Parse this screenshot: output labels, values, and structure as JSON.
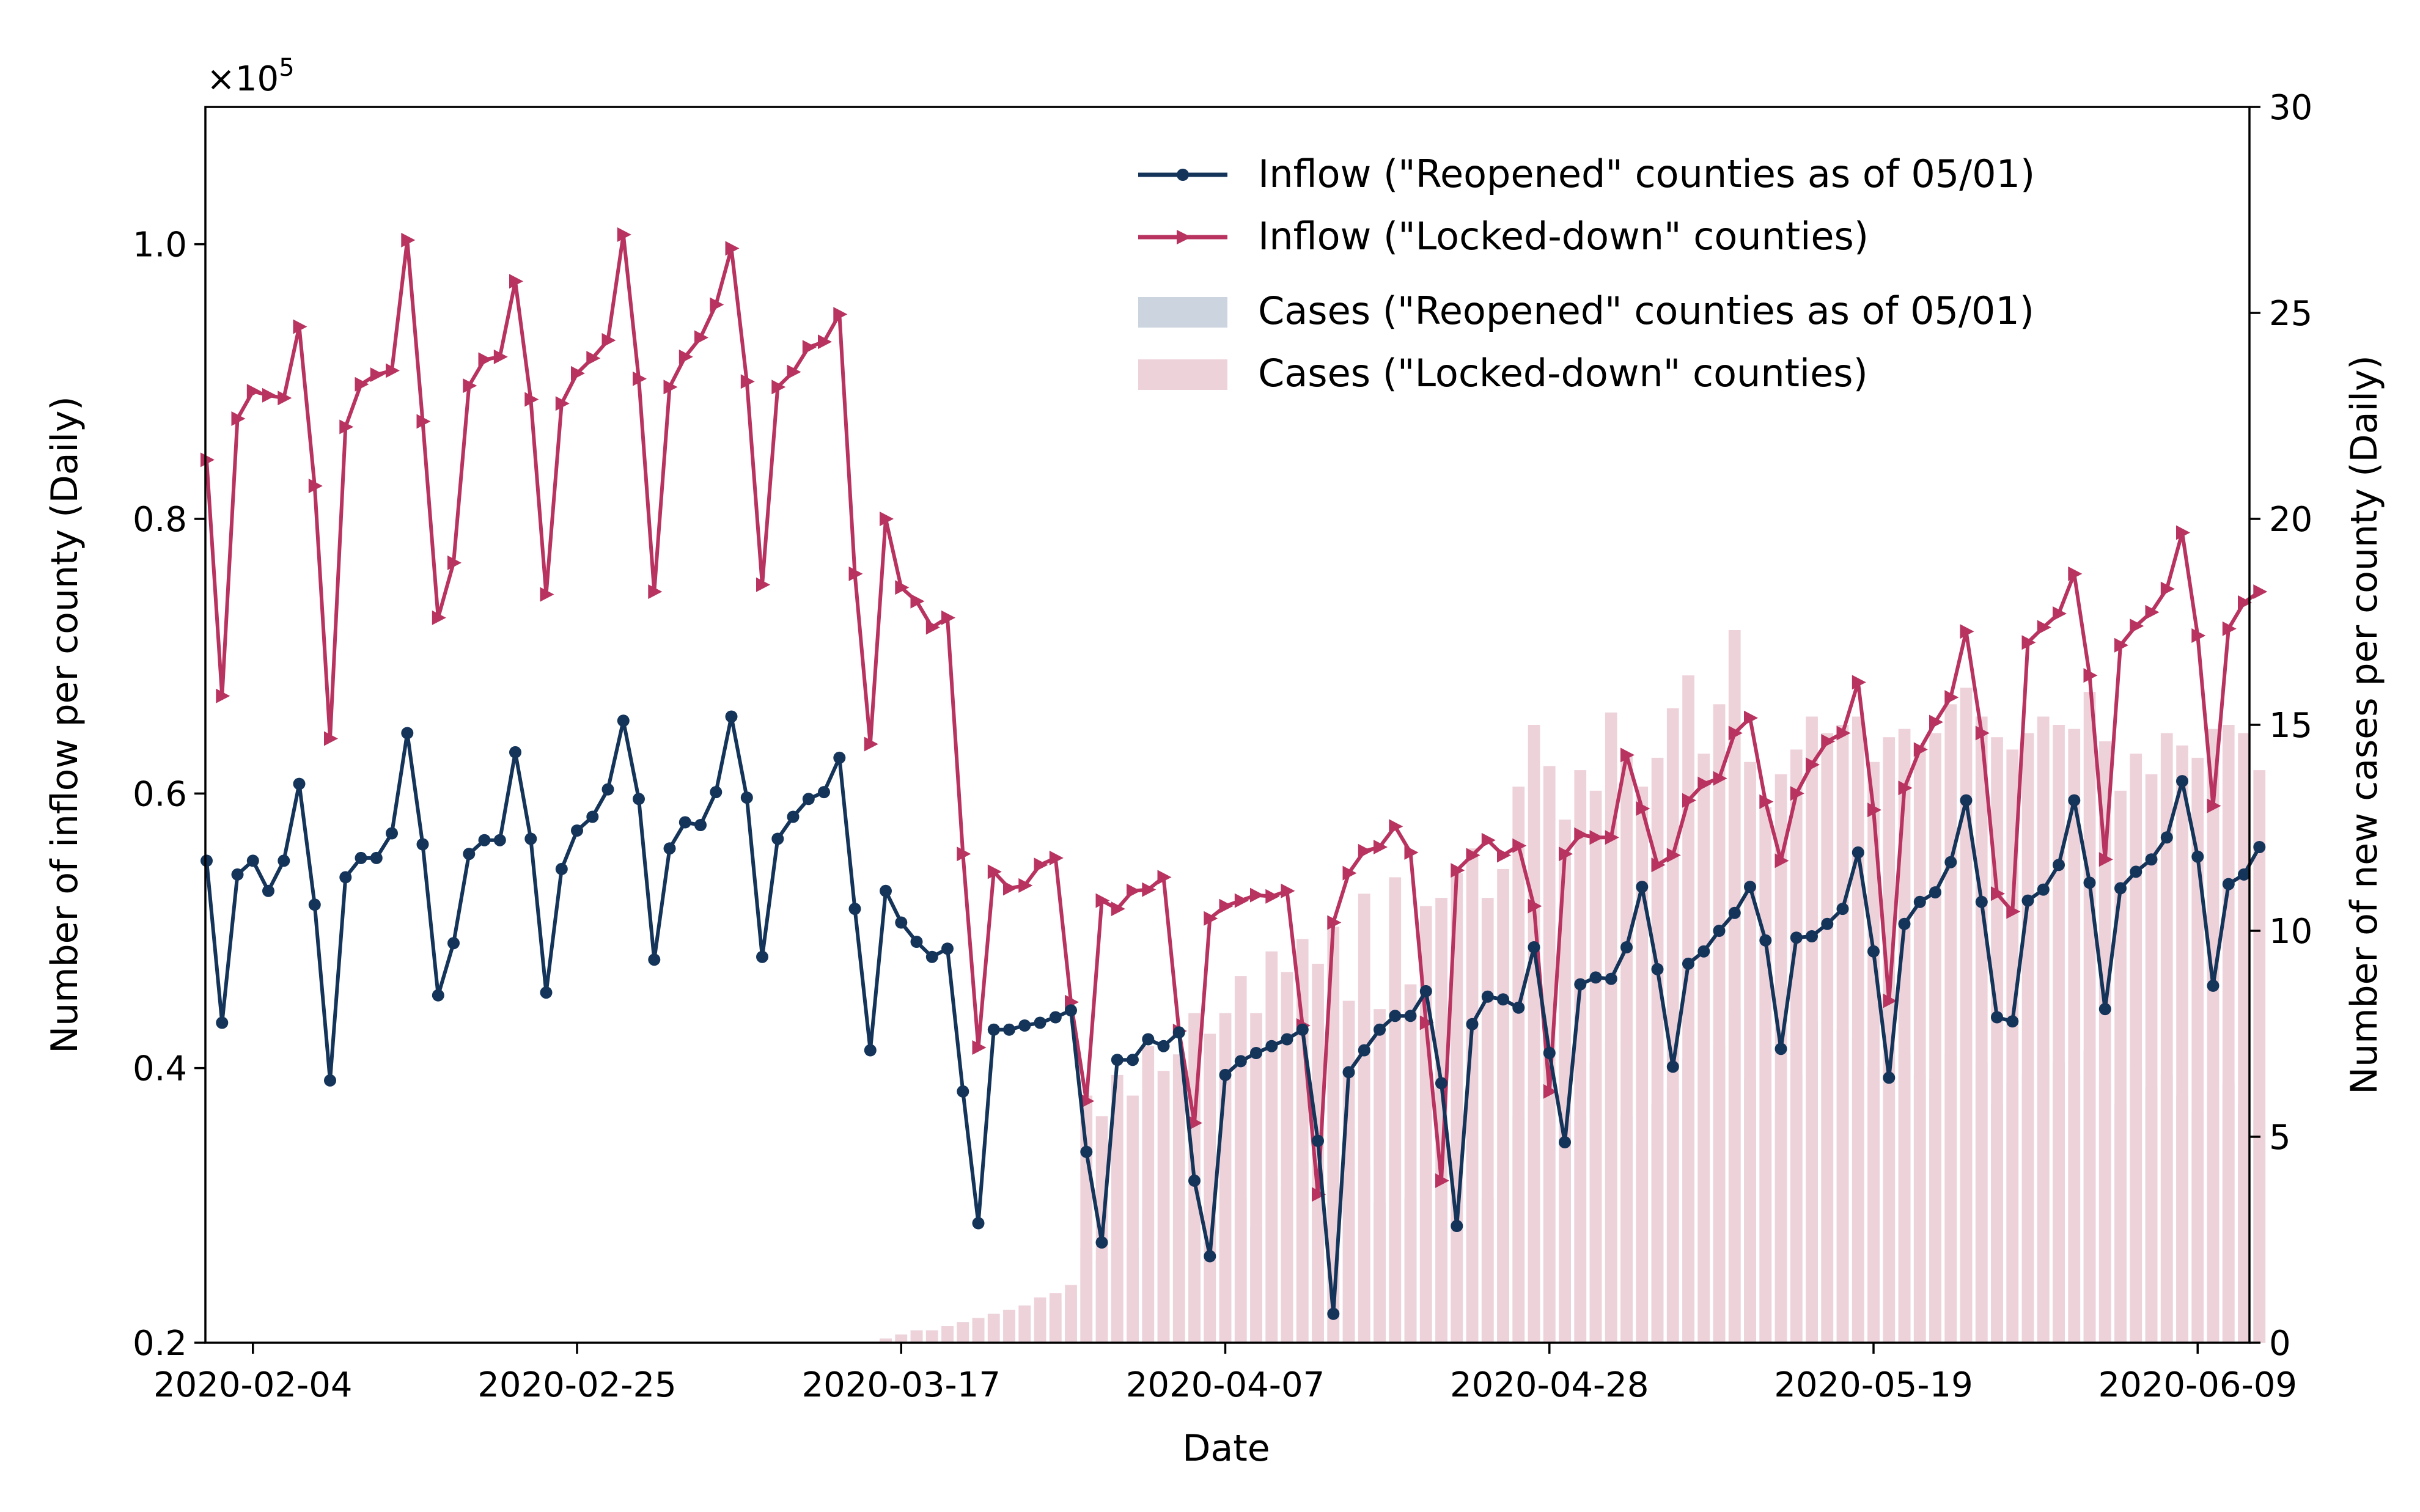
{
  "chart_data": {
    "type": "bar",
    "start_date": "2020-02-01",
    "xlabel": "Date",
    "ylabel_left": "Number of inflow per county (Daily)",
    "ylabel_right": "Number of new cases per county (Daily)",
    "left_axis_multiplier": "×10",
    "left_axis_exponent": "5",
    "ylim_left": [
      0.2,
      1.1
    ],
    "ylim_right": [
      0,
      30
    ],
    "left_ticks": [
      "0.2",
      "0.4",
      "0.6",
      "0.8",
      "1.0"
    ],
    "right_ticks": [
      "0",
      "5",
      "10",
      "15",
      "20",
      "25",
      "30"
    ],
    "x_ticks": [
      "2020-02-04",
      "2020-02-25",
      "2020-03-17",
      "2020-04-07",
      "2020-04-28",
      "2020-05-19",
      "2020-06-09"
    ],
    "legend_position": "upper-right",
    "series": [
      {
        "name": "Inflow (\"Reopened\" counties as of 05/01)",
        "kind": "line",
        "marker": "circle",
        "color": "#14345a",
        "values": [
          0.551,
          0.433,
          0.541,
          0.551,
          0.529,
          0.551,
          0.607,
          0.519,
          0.391,
          0.539,
          0.553,
          0.553,
          0.571,
          0.644,
          0.563,
          0.453,
          0.491,
          0.556,
          0.566,
          0.566,
          0.63,
          0.567,
          0.455,
          0.545,
          0.573,
          0.583,
          0.603,
          0.653,
          0.596,
          0.479,
          0.56,
          0.579,
          0.577,
          0.601,
          0.656,
          0.597,
          0.481,
          0.567,
          0.583,
          0.596,
          0.601,
          0.626,
          0.516,
          0.413,
          0.529,
          0.506,
          0.492,
          0.481,
          0.487,
          0.383,
          0.287,
          0.428,
          0.428,
          0.431,
          0.433,
          0.437,
          0.442,
          0.339,
          0.273,
          0.406,
          0.406,
          0.421,
          0.416,
          0.426,
          0.318,
          0.263,
          0.395,
          0.405,
          0.411,
          0.416,
          0.421,
          0.428,
          0.347,
          0.221,
          0.397,
          0.413,
          0.428,
          0.438,
          0.438,
          0.456,
          0.389,
          0.285,
          0.432,
          0.452,
          0.45,
          0.444,
          0.488,
          0.411,
          0.346,
          0.461,
          0.466,
          0.465,
          0.488,
          0.532,
          0.472,
          0.401,
          0.476,
          0.485,
          0.5,
          0.513,
          0.532,
          0.493,
          0.414,
          0.495,
          0.496,
          0.505,
          0.516,
          0.557,
          0.485,
          0.393,
          0.505,
          0.521,
          0.528,
          0.55,
          0.595,
          0.521,
          0.437,
          0.434,
          0.522,
          0.53,
          0.548,
          0.595,
          0.535,
          0.443,
          0.531,
          0.543,
          0.552,
          0.568,
          0.609,
          0.554,
          0.46,
          0.534,
          0.541,
          0.561
        ]
      },
      {
        "name": "Inflow (\"Locked-down\" counties)",
        "kind": "line",
        "marker": "triangle-right",
        "color": "#b83360",
        "values": [
          0.843,
          0.671,
          0.873,
          0.893,
          0.89,
          0.888,
          0.94,
          0.824,
          0.64,
          0.867,
          0.898,
          0.905,
          0.908,
          1.003,
          0.871,
          0.728,
          0.768,
          0.897,
          0.916,
          0.918,
          0.973,
          0.887,
          0.745,
          0.884,
          0.906,
          0.917,
          0.93,
          1.007,
          0.902,
          0.747,
          0.896,
          0.918,
          0.932,
          0.956,
          0.997,
          0.9,
          0.752,
          0.896,
          0.907,
          0.925,
          0.929,
          0.949,
          0.76,
          0.636,
          0.8,
          0.75,
          0.74,
          0.721,
          0.728,
          0.556,
          0.415,
          0.543,
          0.531,
          0.533,
          0.548,
          0.553,
          0.448,
          0.376,
          0.522,
          0.516,
          0.529,
          0.53,
          0.539,
          0.427,
          0.36,
          0.509,
          0.518,
          0.522,
          0.526,
          0.525,
          0.529,
          0.431,
          0.308,
          0.506,
          0.542,
          0.558,
          0.561,
          0.576,
          0.557,
          0.433,
          0.318,
          0.544,
          0.555,
          0.566,
          0.555,
          0.562,
          0.518,
          0.383,
          0.556,
          0.57,
          0.568,
          0.568,
          0.628,
          0.589,
          0.548,
          0.555,
          0.595,
          0.607,
          0.611,
          0.644,
          0.655,
          0.594,
          0.551,
          0.6,
          0.621,
          0.638,
          0.644,
          0.681,
          0.588,
          0.449,
          0.604,
          0.632,
          0.652,
          0.67,
          0.718,
          0.644,
          0.527,
          0.514,
          0.71,
          0.721,
          0.731,
          0.76,
          0.686,
          0.552,
          0.708,
          0.722,
          0.732,
          0.749,
          0.79,
          0.715,
          0.591,
          0.72,
          0.739,
          0.747
        ]
      },
      {
        "name": "Cases (\"Reopened\" counties as of 05/01)",
        "kind": "bar",
        "color": "#ccd5df",
        "values": [
          0,
          0,
          0,
          0,
          0,
          0,
          0,
          0,
          0,
          0,
          0,
          0,
          0,
          0,
          0,
          0,
          0,
          0,
          0,
          0,
          0,
          0,
          0,
          0,
          0,
          0,
          0,
          0,
          0,
          0,
          0,
          0,
          0,
          0,
          0,
          0,
          0,
          0,
          0,
          0,
          0,
          0,
          0,
          0,
          0.1,
          0.2,
          0.3,
          0.3,
          0.4,
          0.5,
          0.6,
          0.7,
          0.8,
          0.9,
          0.9,
          1.0,
          1.2,
          2.3,
          2.0,
          2.5,
          2.3,
          3.2,
          2.5,
          2.8,
          3.2,
          2.9,
          2.5,
          3.5,
          2.8,
          4.0,
          3.8,
          4.4,
          4.0,
          3.9,
          3.5,
          4.3,
          3.4,
          4.7,
          3.5,
          4.5,
          4.2,
          3.8,
          4.9,
          3.5,
          4.0,
          5.5,
          6.0,
          5.8,
          5.0,
          5.5,
          6.8,
          7.3,
          5.5,
          4.8,
          5.8,
          6.2,
          6.9,
          6.8,
          7.2,
          8.1,
          6.4,
          5.4,
          5.6,
          6.5,
          7.8,
          7.1,
          7.6,
          7.4,
          6.7,
          6.8,
          7.0,
          6.5,
          6.4,
          7.0,
          7.5,
          6.8,
          5.8,
          6.3,
          6.5,
          7.0,
          6.8,
          6.5,
          7.1,
          6.3,
          5.8,
          6.7,
          6.2,
          6.5,
          6.0,
          5.6,
          6.1,
          6.3,
          5.8,
          5.4
        ]
      },
      {
        "name": "Cases (\"Locked-down\" counties)",
        "kind": "bar",
        "color": "#eed2da",
        "values": [
          0,
          0,
          0,
          0,
          0,
          0,
          0,
          0,
          0,
          0,
          0,
          0,
          0,
          0,
          0,
          0,
          0,
          0,
          0,
          0,
          0,
          0,
          0,
          0,
          0,
          0,
          0,
          0,
          0,
          0,
          0,
          0,
          0,
          0,
          0,
          0,
          0,
          0,
          0,
          0,
          0,
          0,
          0,
          0,
          0.1,
          0.2,
          0.3,
          0.3,
          0.4,
          0.5,
          0.6,
          0.7,
          0.8,
          0.9,
          1.1,
          1.2,
          1.4,
          6.0,
          5.5,
          6.5,
          6.0,
          7.2,
          6.6,
          7.0,
          8.0,
          7.5,
          8.0,
          8.9,
          8.0,
          9.5,
          9.0,
          9.8,
          9.2,
          10.1,
          8.3,
          10.9,
          8.1,
          11.3,
          8.7,
          10.6,
          10.8,
          11.4,
          12.0,
          10.8,
          11.5,
          13.5,
          15.0,
          14.0,
          12.7,
          13.9,
          13.4,
          15.3,
          14.3,
          13.5,
          14.2,
          15.4,
          16.2,
          14.3,
          15.5,
          17.3,
          14.1,
          13.0,
          13.8,
          14.4,
          15.2,
          14.8,
          15.0,
          15.2,
          14.1,
          14.7,
          14.9,
          14.5,
          14.8,
          15.5,
          15.9,
          15.2,
          14.7,
          14.4,
          14.8,
          15.2,
          15.0,
          14.9,
          15.8,
          14.6,
          13.4,
          14.3,
          13.8,
          14.8,
          14.5,
          14.2,
          14.9,
          15.0,
          14.8,
          13.9
        ]
      }
    ]
  }
}
